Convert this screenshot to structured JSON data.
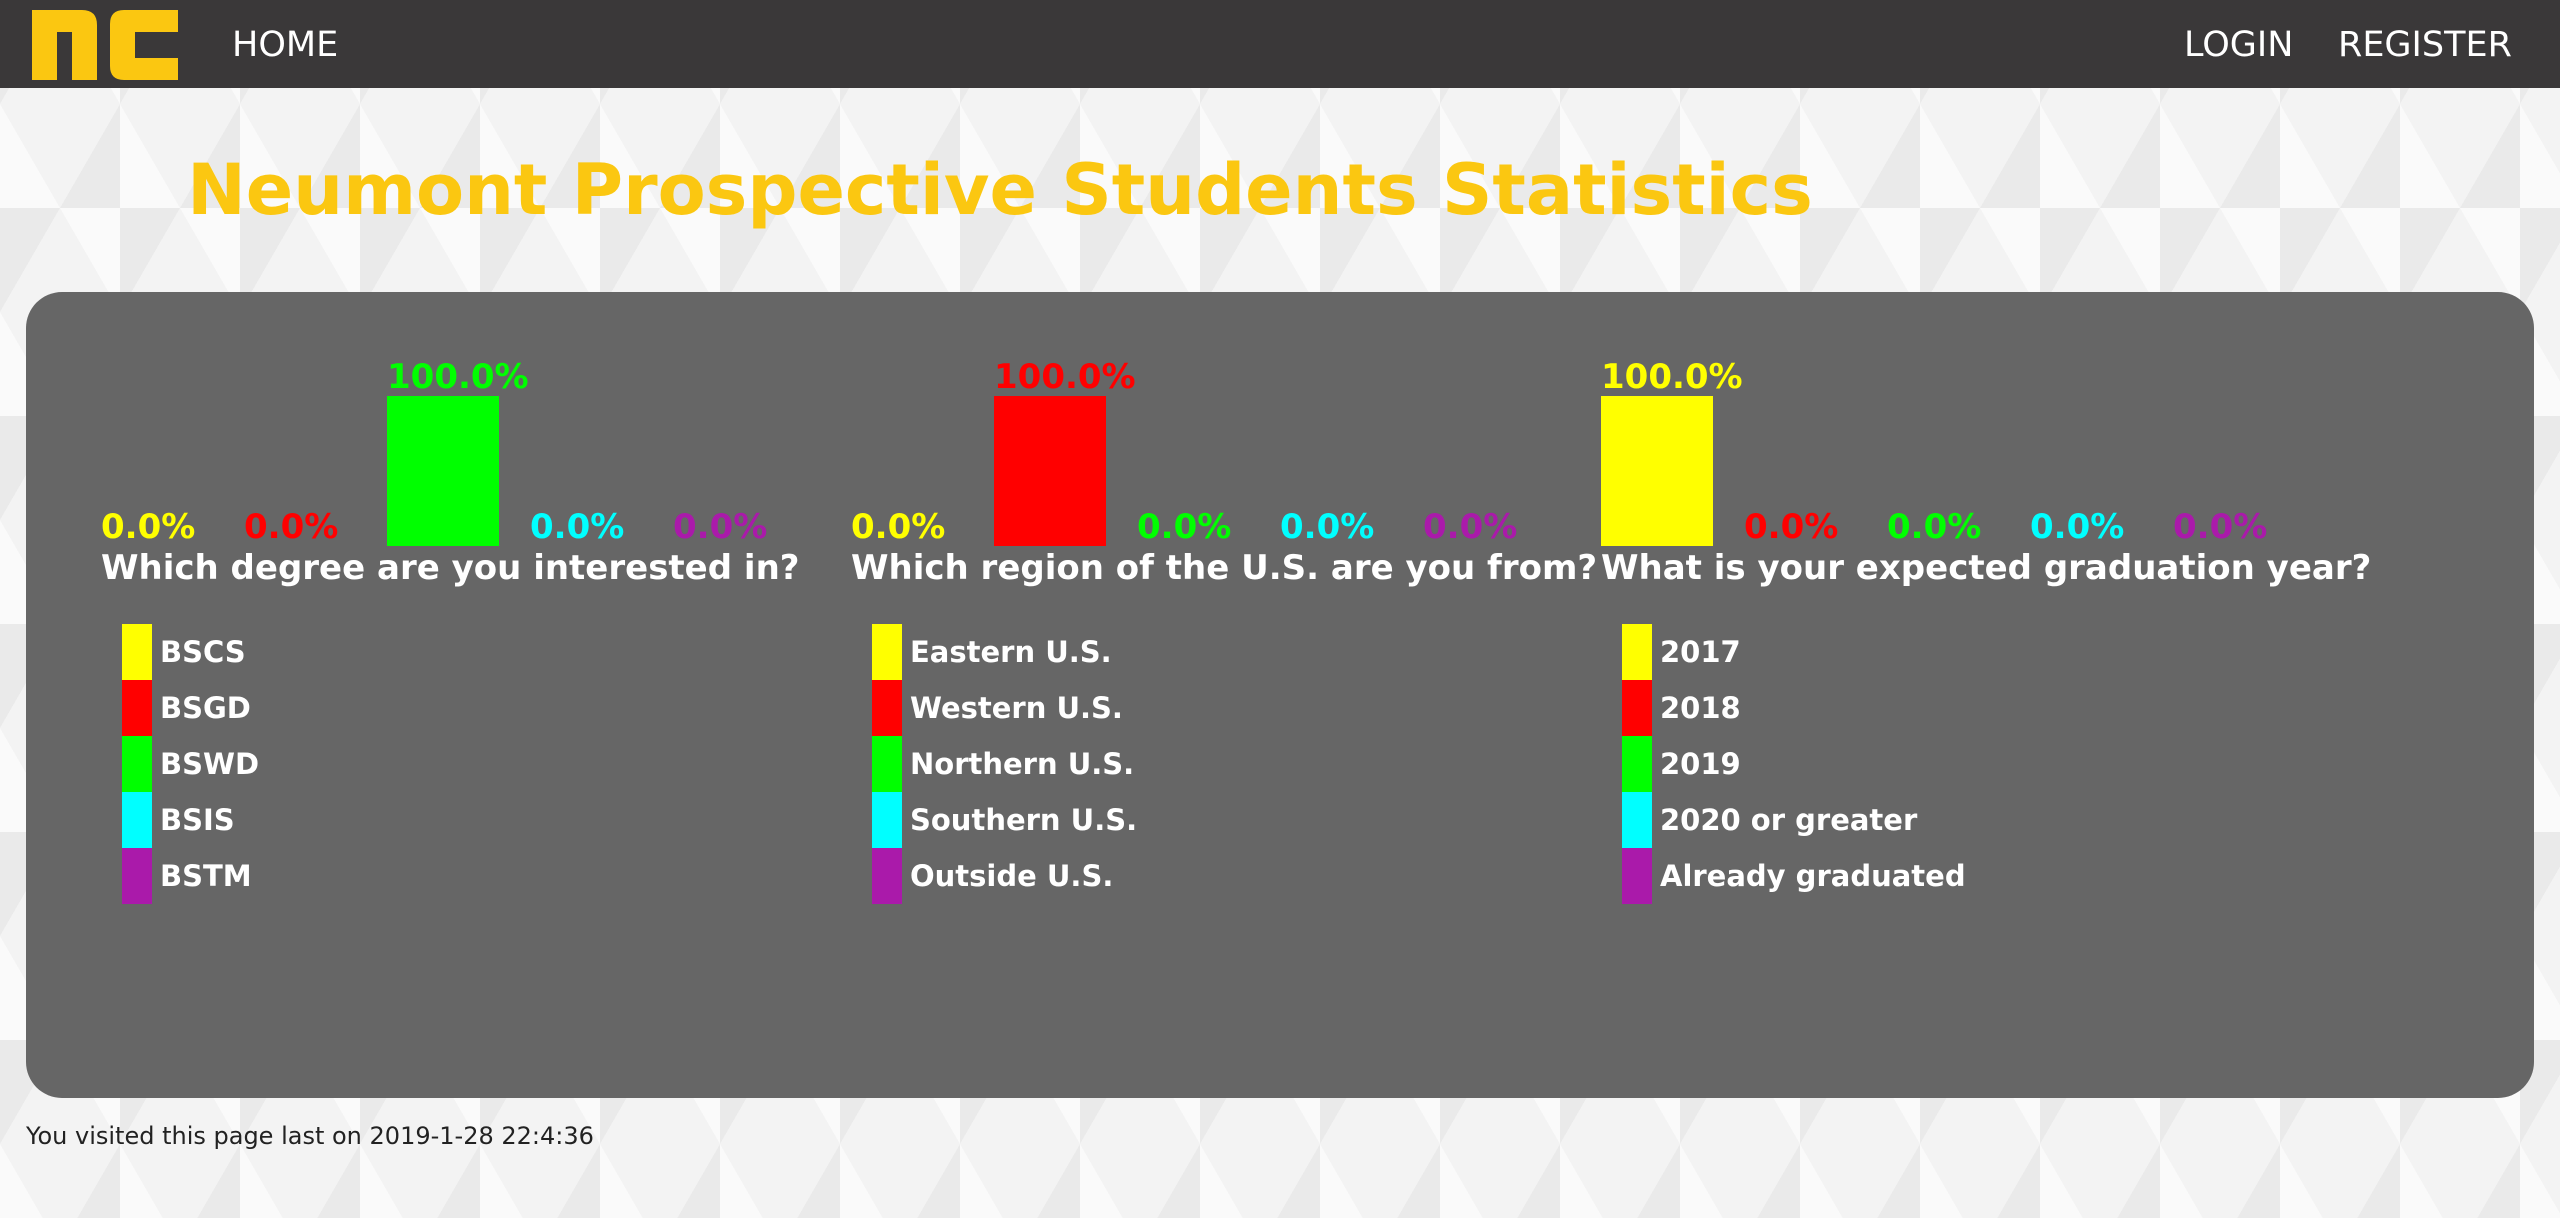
{
  "nav": {
    "home": "HOME",
    "login": "LOGIN",
    "register": "REGISTER"
  },
  "page_title": "Neumont Prospective Students Statistics",
  "footer": {
    "visited_prefix": "You visited this page last on",
    "visited_time": "2019-1-28 22:4:36"
  },
  "colors": {
    "logo": "#fbc711",
    "title": "#fbc711",
    "series": [
      "#ffff00",
      "#ff0000",
      "#00ff00",
      "#00ffff",
      "#aa1aaa"
    ]
  },
  "chart_data": [
    {
      "type": "bar",
      "title": "Which degree are you interested in?",
      "categories": [
        "BSCS",
        "BSGD",
        "BSWD",
        "BSIS",
        "BSTM"
      ],
      "values": [
        0.0,
        0.0,
        100.0,
        0.0,
        0.0
      ],
      "labels": [
        "0.0%",
        "0.0%",
        "100.0%",
        "0.0%",
        "0.0%"
      ],
      "ylim": [
        0,
        100
      ],
      "legend": "below"
    },
    {
      "type": "bar",
      "title": "Which region of the U.S. are you from?",
      "categories": [
        "Eastern U.S.",
        "Western U.S.",
        "Northern U.S.",
        "Southern U.S.",
        "Outside U.S."
      ],
      "values": [
        0.0,
        100.0,
        0.0,
        0.0,
        0.0
      ],
      "labels": [
        "0.0%",
        "100.0%",
        "0.0%",
        "0.0%",
        "0.0%"
      ],
      "ylim": [
        0,
        100
      ],
      "legend": "below"
    },
    {
      "type": "bar",
      "title": "What is your expected graduation year?",
      "categories": [
        "2017",
        "2018",
        "2019",
        "2020 or greater",
        "Already graduated"
      ],
      "values": [
        100.0,
        0.0,
        0.0,
        0.0,
        0.0
      ],
      "labels": [
        "100.0%",
        "0.0%",
        "0.0%",
        "0.0%",
        "0.0%"
      ],
      "ylim": [
        0,
        100
      ],
      "legend": "below"
    }
  ]
}
